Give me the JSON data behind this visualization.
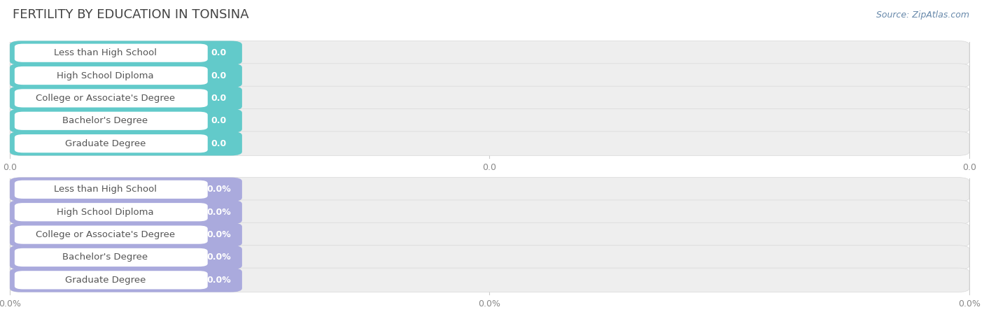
{
  "title": "FERTILITY BY EDUCATION IN TONSINA",
  "source": "Source: ZipAtlas.com",
  "background_color": "#ffffff",
  "categories": [
    "Less than High School",
    "High School Diploma",
    "College or Associate's Degree",
    "Bachelor's Degree",
    "Graduate Degree"
  ],
  "group1": {
    "values": [
      0.0,
      0.0,
      0.0,
      0.0,
      0.0
    ],
    "bar_color": "#62caca",
    "label_color": "#555555",
    "value_color": "#ffffff",
    "value_suffix": "",
    "axis_ticks": [
      "0.0",
      "0.0",
      "0.0"
    ],
    "bar_bg_color": "#eeeeee"
  },
  "group2": {
    "values": [
      0.0,
      0.0,
      0.0,
      0.0,
      0.0
    ],
    "bar_color": "#aaaadd",
    "label_color": "#555555",
    "value_color": "#ffffff",
    "value_suffix": "%",
    "axis_ticks": [
      "0.0%",
      "0.0%",
      "0.0%"
    ],
    "bar_bg_color": "#eeeeee"
  },
  "grid_line_color": "#cccccc",
  "tick_label_color": "#888888",
  "title_fontsize": 13,
  "label_fontsize": 9.5,
  "value_fontsize": 9,
  "source_fontsize": 9,
  "tick_fontsize": 9
}
